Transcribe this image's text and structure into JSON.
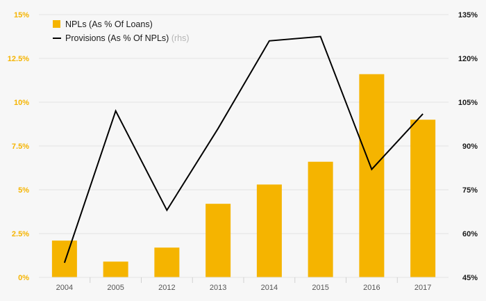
{
  "colors": {
    "bar": "#f5b400",
    "line": "#000000",
    "left_ticks": "#f5b400",
    "right_ticks": "#1a1a1a"
  },
  "chart_data": {
    "type": "bar",
    "categories": [
      "2004",
      "2005",
      "2012",
      "2013",
      "2014",
      "2015",
      "2016",
      "2017"
    ],
    "series": [
      {
        "name": "NPLs (As % Of Loans)",
        "type": "bar",
        "axis": "left",
        "values": [
          2.1,
          0.9,
          1.7,
          4.2,
          5.3,
          6.6,
          11.6,
          9.0
        ]
      },
      {
        "name": "Provisions (As % Of NPLs)",
        "name_suffix": "(rhs)",
        "type": "line",
        "axis": "right",
        "values": [
          50,
          102,
          68,
          96,
          126,
          127.5,
          82,
          101
        ]
      }
    ],
    "y_left": {
      "min": 0,
      "max": 15,
      "ticks": [
        0,
        2.5,
        5,
        7.5,
        10,
        12.5,
        15
      ],
      "tick_labels": [
        "0%",
        "2.5%",
        "5%",
        "7.5%",
        "10%",
        "12.5%",
        "15%"
      ]
    },
    "y_right": {
      "min": 45,
      "max": 135,
      "ticks": [
        45,
        60,
        75,
        90,
        105,
        120,
        135
      ],
      "tick_labels": [
        "45%",
        "60%",
        "75%",
        "90%",
        "105%",
        "120%",
        "135%"
      ]
    },
    "grid": true,
    "legend_position": "top-left"
  }
}
